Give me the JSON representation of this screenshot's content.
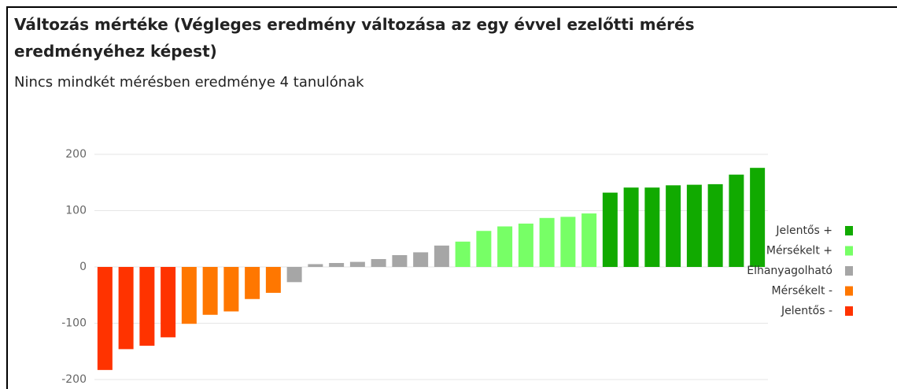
{
  "chart_data": {
    "type": "bar",
    "title": "Változás mértéke (Végleges eredmény változása az egy évvel ezelőtti mérés eredményéhez képest)",
    "subtitle": "Nincs mindkét mérésben eredménye 4 tanulónak",
    "ylim": [
      -200,
      200
    ],
    "yticks": [
      200,
      100,
      0,
      -100,
      -200
    ],
    "grid": true,
    "legend": "right",
    "series": [
      {
        "name": "Jelentős +",
        "color": "#11aa00",
        "values": [
          null,
          null,
          null,
          null,
          null,
          null,
          null,
          null,
          null,
          null,
          null,
          null,
          null,
          null,
          null,
          null,
          null,
          null,
          null,
          null,
          null,
          null,
          null,
          null,
          132,
          141,
          141,
          145,
          146,
          147,
          164,
          176
        ]
      },
      {
        "name": "Mérsékelt +",
        "color": "#77ff66",
        "values": [
          null,
          null,
          null,
          null,
          null,
          null,
          null,
          null,
          null,
          null,
          null,
          null,
          null,
          null,
          null,
          null,
          null,
          45,
          64,
          72,
          77,
          87,
          89,
          95,
          null,
          null,
          null,
          null,
          null,
          null,
          null,
          null
        ]
      },
      {
        "name": "Elhanyagolható",
        "color": "#a6a6a6",
        "values": [
          null,
          null,
          null,
          null,
          null,
          null,
          null,
          null,
          null,
          -27,
          5,
          7,
          9,
          14,
          21,
          26,
          38,
          null,
          null,
          null,
          null,
          null,
          null,
          null,
          null,
          null,
          null,
          null,
          null,
          null,
          null,
          null
        ]
      },
      {
        "name": "Mérsékelt -",
        "color": "#ff7700",
        "values": [
          null,
          null,
          null,
          null,
          -101,
          -85,
          -79,
          -57,
          -46,
          null,
          null,
          null,
          null,
          null,
          null,
          null,
          null,
          null,
          null,
          null,
          null,
          null,
          null,
          null,
          null,
          null,
          null,
          null,
          null,
          null,
          null,
          null
        ]
      },
      {
        "name": "Jelentős -",
        "color": "#ff3300",
        "values": [
          -183,
          -146,
          -140,
          -125,
          null,
          null,
          null,
          null,
          null,
          null,
          null,
          null,
          null,
          null,
          null,
          null,
          null,
          null,
          null,
          null,
          null,
          null,
          null,
          null,
          null,
          null,
          null,
          null,
          null,
          null,
          null,
          null
        ]
      }
    ]
  }
}
